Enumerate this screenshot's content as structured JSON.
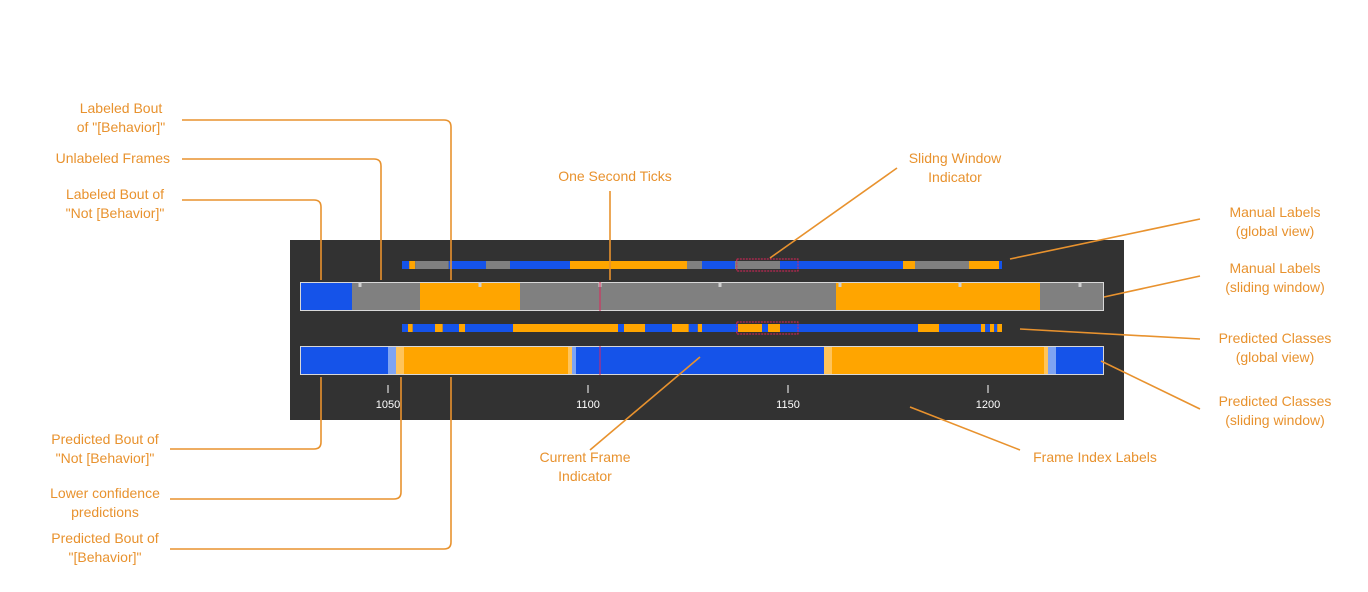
{
  "colors": {
    "behavior": "#ffa500",
    "not_behavior": "#1553e9",
    "unlabeled": "#808080",
    "low_conf_not_behavior": "#7fa4f2",
    "low_conf_behavior": "#ffc45a",
    "panel_background": "#323232",
    "annotation": "#e8922e",
    "current_frame": "#e0245a",
    "tick_text": "#ffffff"
  },
  "frame_axis": {
    "ticks": [
      1050,
      1100,
      1150,
      1200
    ],
    "tick_labels": [
      "1050",
      "1100",
      "1150",
      "1200"
    ],
    "current_frame": 1103
  },
  "manual_labels_window": [
    {
      "label": "not_behavior",
      "start": 1028,
      "end": 1041
    },
    {
      "label": "unlabeled",
      "start": 1041,
      "end": 1058
    },
    {
      "label": "behavior",
      "start": 1058,
      "end": 1083
    },
    {
      "label": "unlabeled",
      "start": 1083,
      "end": 1162
    },
    {
      "label": "behavior",
      "start": 1162,
      "end": 1213
    },
    {
      "label": "unlabeled",
      "start": 1213,
      "end": 1229
    }
  ],
  "predicted_window": [
    {
      "label": "not_behavior",
      "start": 1028,
      "end": 1050
    },
    {
      "label": "low_conf_not_behavior",
      "start": 1050,
      "end": 1052
    },
    {
      "label": "low_conf_behavior",
      "start": 1052,
      "end": 1054
    },
    {
      "label": "behavior",
      "start": 1054,
      "end": 1095
    },
    {
      "label": "low_conf_behavior",
      "start": 1095,
      "end": 1096
    },
    {
      "label": "low_conf_not_behavior",
      "start": 1096,
      "end": 1097
    },
    {
      "label": "not_behavior",
      "start": 1097,
      "end": 1159
    },
    {
      "label": "low_conf_behavior",
      "start": 1159,
      "end": 1161
    },
    {
      "label": "behavior",
      "start": 1161,
      "end": 1214
    },
    {
      "label": "low_conf_behavior",
      "start": 1214,
      "end": 1215
    },
    {
      "label": "low_conf_not_behavior",
      "start": 1215,
      "end": 1217
    },
    {
      "label": "not_behavior",
      "start": 1217,
      "end": 1229
    }
  ],
  "manual_labels_global": [
    {
      "label": "not_behavior",
      "start": 0,
      "end": 0.012
    },
    {
      "label": "behavior",
      "start": 0.012,
      "end": 0.022
    },
    {
      "label": "unlabeled",
      "start": 0.022,
      "end": 0.078
    },
    {
      "label": "not_behavior",
      "start": 0.078,
      "end": 0.14
    },
    {
      "label": "unlabeled",
      "start": 0.14,
      "end": 0.18
    },
    {
      "label": "not_behavior",
      "start": 0.18,
      "end": 0.28
    },
    {
      "label": "behavior",
      "start": 0.28,
      "end": 0.475
    },
    {
      "label": "unlabeled",
      "start": 0.475,
      "end": 0.5
    },
    {
      "label": "not_behavior",
      "start": 0.5,
      "end": 0.555
    },
    {
      "label": "unlabeled",
      "start": 0.555,
      "end": 0.63
    },
    {
      "label": "not_behavior",
      "start": 0.63,
      "end": 0.835
    },
    {
      "label": "behavior",
      "start": 0.835,
      "end": 0.855
    },
    {
      "label": "unlabeled",
      "start": 0.855,
      "end": 0.945
    },
    {
      "label": "behavior",
      "start": 0.945,
      "end": 0.995
    },
    {
      "label": "not_behavior",
      "start": 0.995,
      "end": 1.025
    },
    {
      "label": "unlabeled",
      "start": 1.025,
      "end": 1.0
    },
    {
      "label": "not_behavior",
      "start": 1.0,
      "end": 1.09
    },
    {
      "label": "unlabeled",
      "start": 1.09,
      "end": 1.0
    }
  ],
  "predicted_global": [
    {
      "label": "not_behavior",
      "start": 0,
      "end": 0.01
    },
    {
      "label": "behavior",
      "start": 0.01,
      "end": 0.018
    },
    {
      "label": "not_behavior",
      "start": 0.018,
      "end": 0.055
    },
    {
      "label": "behavior",
      "start": 0.055,
      "end": 0.068
    },
    {
      "label": "not_behavior",
      "start": 0.068,
      "end": 0.095
    },
    {
      "label": "behavior",
      "start": 0.095,
      "end": 0.105
    },
    {
      "label": "not_behavior",
      "start": 0.105,
      "end": 0.185
    },
    {
      "label": "behavior",
      "start": 0.185,
      "end": 0.36
    },
    {
      "label": "not_behavior",
      "start": 0.36,
      "end": 0.37
    },
    {
      "label": "behavior",
      "start": 0.37,
      "end": 0.405
    },
    {
      "label": "not_behavior",
      "start": 0.405,
      "end": 0.45
    },
    {
      "label": "behavior",
      "start": 0.45,
      "end": 0.478
    },
    {
      "label": "not_behavior",
      "start": 0.478,
      "end": 0.493
    },
    {
      "label": "behavior",
      "start": 0.493,
      "end": 0.5
    },
    {
      "label": "not_behavior",
      "start": 0.5,
      "end": 0.56
    },
    {
      "label": "behavior",
      "start": 0.56,
      "end": 0.6
    },
    {
      "label": "not_behavior",
      "start": 0.6,
      "end": 0.61
    },
    {
      "label": "behavior",
      "start": 0.61,
      "end": 0.63
    },
    {
      "label": "not_behavior",
      "start": 0.63,
      "end": 0.86
    },
    {
      "label": "behavior",
      "start": 0.86,
      "end": 0.895
    },
    {
      "label": "not_behavior",
      "start": 0.895,
      "end": 0.965
    },
    {
      "label": "behavior",
      "start": 0.965,
      "end": 0.972
    },
    {
      "label": "not_behavior",
      "start": 0.972,
      "end": 0.98
    },
    {
      "label": "behavior",
      "start": 0.98,
      "end": 0.987
    },
    {
      "label": "not_behavior",
      "start": 0.987,
      "end": 0.992
    },
    {
      "label": "behavior",
      "start": 0.992,
      "end": 1.0
    }
  ],
  "sliding_window_indicator": {
    "start": 0.558,
    "end": 0.66
  },
  "annotations": {
    "labeled_bout_behavior": [
      "Labeled Bout",
      "of \"[Behavior]\""
    ],
    "unlabeled_frames": [
      "Unlabeled Frames"
    ],
    "labeled_bout_not_behavior": [
      "Labeled Bout of",
      "\"Not [Behavior]\""
    ],
    "one_second_ticks": [
      "One Second Ticks"
    ],
    "sliding_window_indicator": [
      "Slidng Window",
      "Indicator"
    ],
    "manual_labels_global": [
      "Manual Labels",
      "(global view)"
    ],
    "manual_labels_sliding": [
      "Manual Labels",
      "(sliding window)"
    ],
    "predicted_classes_global": [
      "Predicted Classes",
      "(global view)"
    ],
    "predicted_classes_sliding": [
      "Predicted Classes",
      "(sliding window)"
    ],
    "predicted_bout_not_behavior": [
      "Predicted Bout of",
      "\"Not [Behavior]\""
    ],
    "lower_confidence": [
      "Lower confidence",
      "predictions"
    ],
    "predicted_bout_behavior": [
      "Predicted Bout of",
      "\"[Behavior]\""
    ],
    "current_frame_indicator": [
      "Current Frame",
      "Indicator"
    ],
    "frame_index_labels": [
      "Frame Index Labels"
    ]
  }
}
